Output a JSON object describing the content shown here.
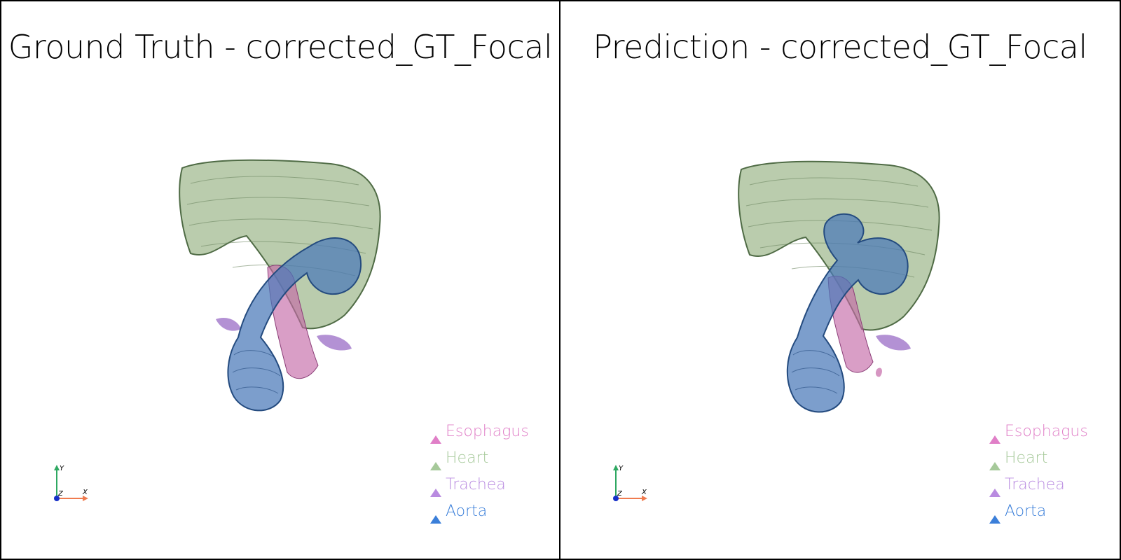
{
  "panels": [
    {
      "title": "Ground Truth - corrected_GT_Focal",
      "legend": [
        {
          "label": "Esophagus",
          "color": "#e07fc7"
        },
        {
          "label": "Heart",
          "color": "#a6c99a"
        },
        {
          "label": "Trachea",
          "color": "#b98be0"
        },
        {
          "label": "Aorta",
          "color": "#3b7fd9"
        }
      ],
      "axes": {
        "x": "X",
        "y": "Y",
        "z": "Z"
      }
    },
    {
      "title": "Prediction - corrected_GT_Focal",
      "legend": [
        {
          "label": "Esophagus",
          "color": "#e07fc7"
        },
        {
          "label": "Heart",
          "color": "#a6c99a"
        },
        {
          "label": "Trachea",
          "color": "#b98be0"
        },
        {
          "label": "Aorta",
          "color": "#3b7fd9"
        }
      ],
      "axes": {
        "x": "X",
        "y": "Y",
        "z": "Z"
      }
    }
  ],
  "colors": {
    "heart_fill": "#9fb88e",
    "heart_edge": "#4f6b45",
    "aorta_fill": "#4a78b8",
    "aorta_edge": "#244b7f",
    "esophagus_fill": "#c46aa8",
    "trachea_fill": "#9a6cc6",
    "axis_x": "#f07b4f",
    "axis_y": "#2fa862",
    "axis_z": "#1630c8"
  }
}
